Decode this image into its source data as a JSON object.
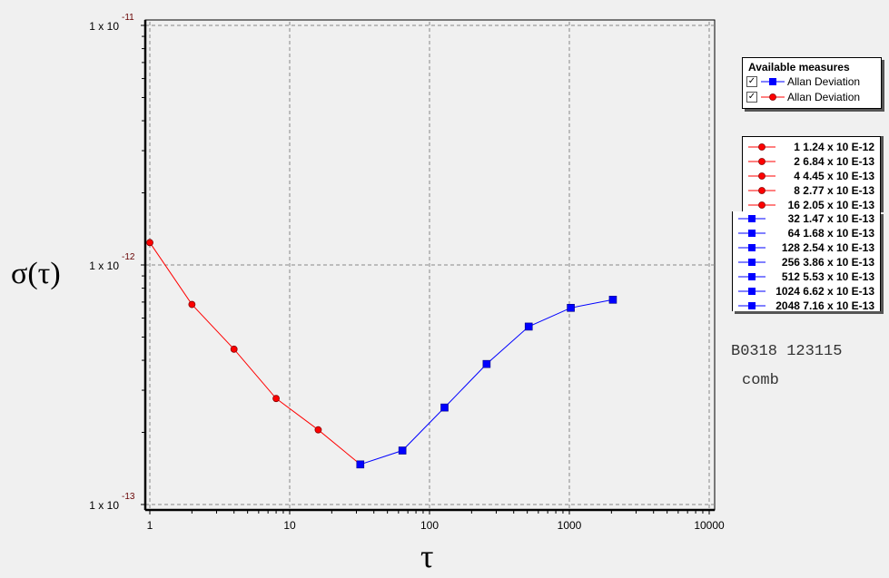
{
  "chart_data": {
    "type": "line",
    "xscale": "log",
    "yscale": "log",
    "xlim": [
      1,
      10000
    ],
    "ylim": [
      1e-13,
      1e-11
    ],
    "xlabel": "τ",
    "ylabel": "σ(τ)",
    "x_ticks": [
      "1",
      "10",
      "100",
      "1000",
      "10000"
    ],
    "y_ticks": [
      {
        "base": "1 x 10",
        "exp": "-13"
      },
      {
        "base": "1 x 10",
        "exp": "-12"
      },
      {
        "base": "1 x 10",
        "exp": "-11"
      }
    ],
    "grid": true,
    "series": [
      {
        "name": "Allan Deviation",
        "color": "#ff0000",
        "marker": "circle",
        "x": [
          1,
          2,
          4,
          8,
          16,
          32
        ],
        "y": [
          1.24e-12,
          6.84e-13,
          4.45e-13,
          2.77e-13,
          2.05e-13,
          1.47e-13
        ]
      },
      {
        "name": "Allan Deviation",
        "color": "#0000ff",
        "marker": "square",
        "x": [
          32,
          64,
          128,
          256,
          512,
          1024,
          2048
        ],
        "y": [
          1.47e-13,
          1.68e-13,
          2.54e-13,
          3.86e-13,
          5.53e-13,
          6.62e-13,
          7.16e-13
        ]
      }
    ]
  },
  "available_measures": {
    "title": "Available measures",
    "items": [
      {
        "label": "Allan Deviation",
        "checked": true,
        "color": "#0000ff",
        "marker": "square"
      },
      {
        "label": "Allan Deviation",
        "checked": true,
        "color": "#ff0000",
        "marker": "circle"
      }
    ]
  },
  "value_legend": [
    {
      "text": "1 1.24 x 10 E-12",
      "color": "#ff0000"
    },
    {
      "text": "2 6.84 x 10 E-13",
      "color": "#ff0000"
    },
    {
      "text": "4 4.45 x 10 E-13",
      "color": "#ff0000"
    },
    {
      "text": "8 2.77 x 10 E-13",
      "color": "#ff0000"
    },
    {
      "text": "16 2.05 x 10 E-13",
      "color": "#ff0000"
    },
    {
      "text": "32 1.47 x 10 E-13",
      "color": "#0000ff"
    },
    {
      "text": "64 1.68 x 10 E-13",
      "color": "#0000ff"
    },
    {
      "text": "128 2.54 x 10 E-13",
      "color": "#0000ff"
    },
    {
      "text": "256 3.86 x 10 E-13",
      "color": "#0000ff"
    },
    {
      "text": "512 5.53 x 10 E-13",
      "color": "#0000ff"
    },
    {
      "text": "1024 6.62 x 10 E-13",
      "color": "#0000ff"
    },
    {
      "text": "2048 7.16 x 10 E-13",
      "color": "#0000ff"
    }
  ],
  "notes": {
    "line1": "B0318 123115",
    "line2": "comb"
  }
}
